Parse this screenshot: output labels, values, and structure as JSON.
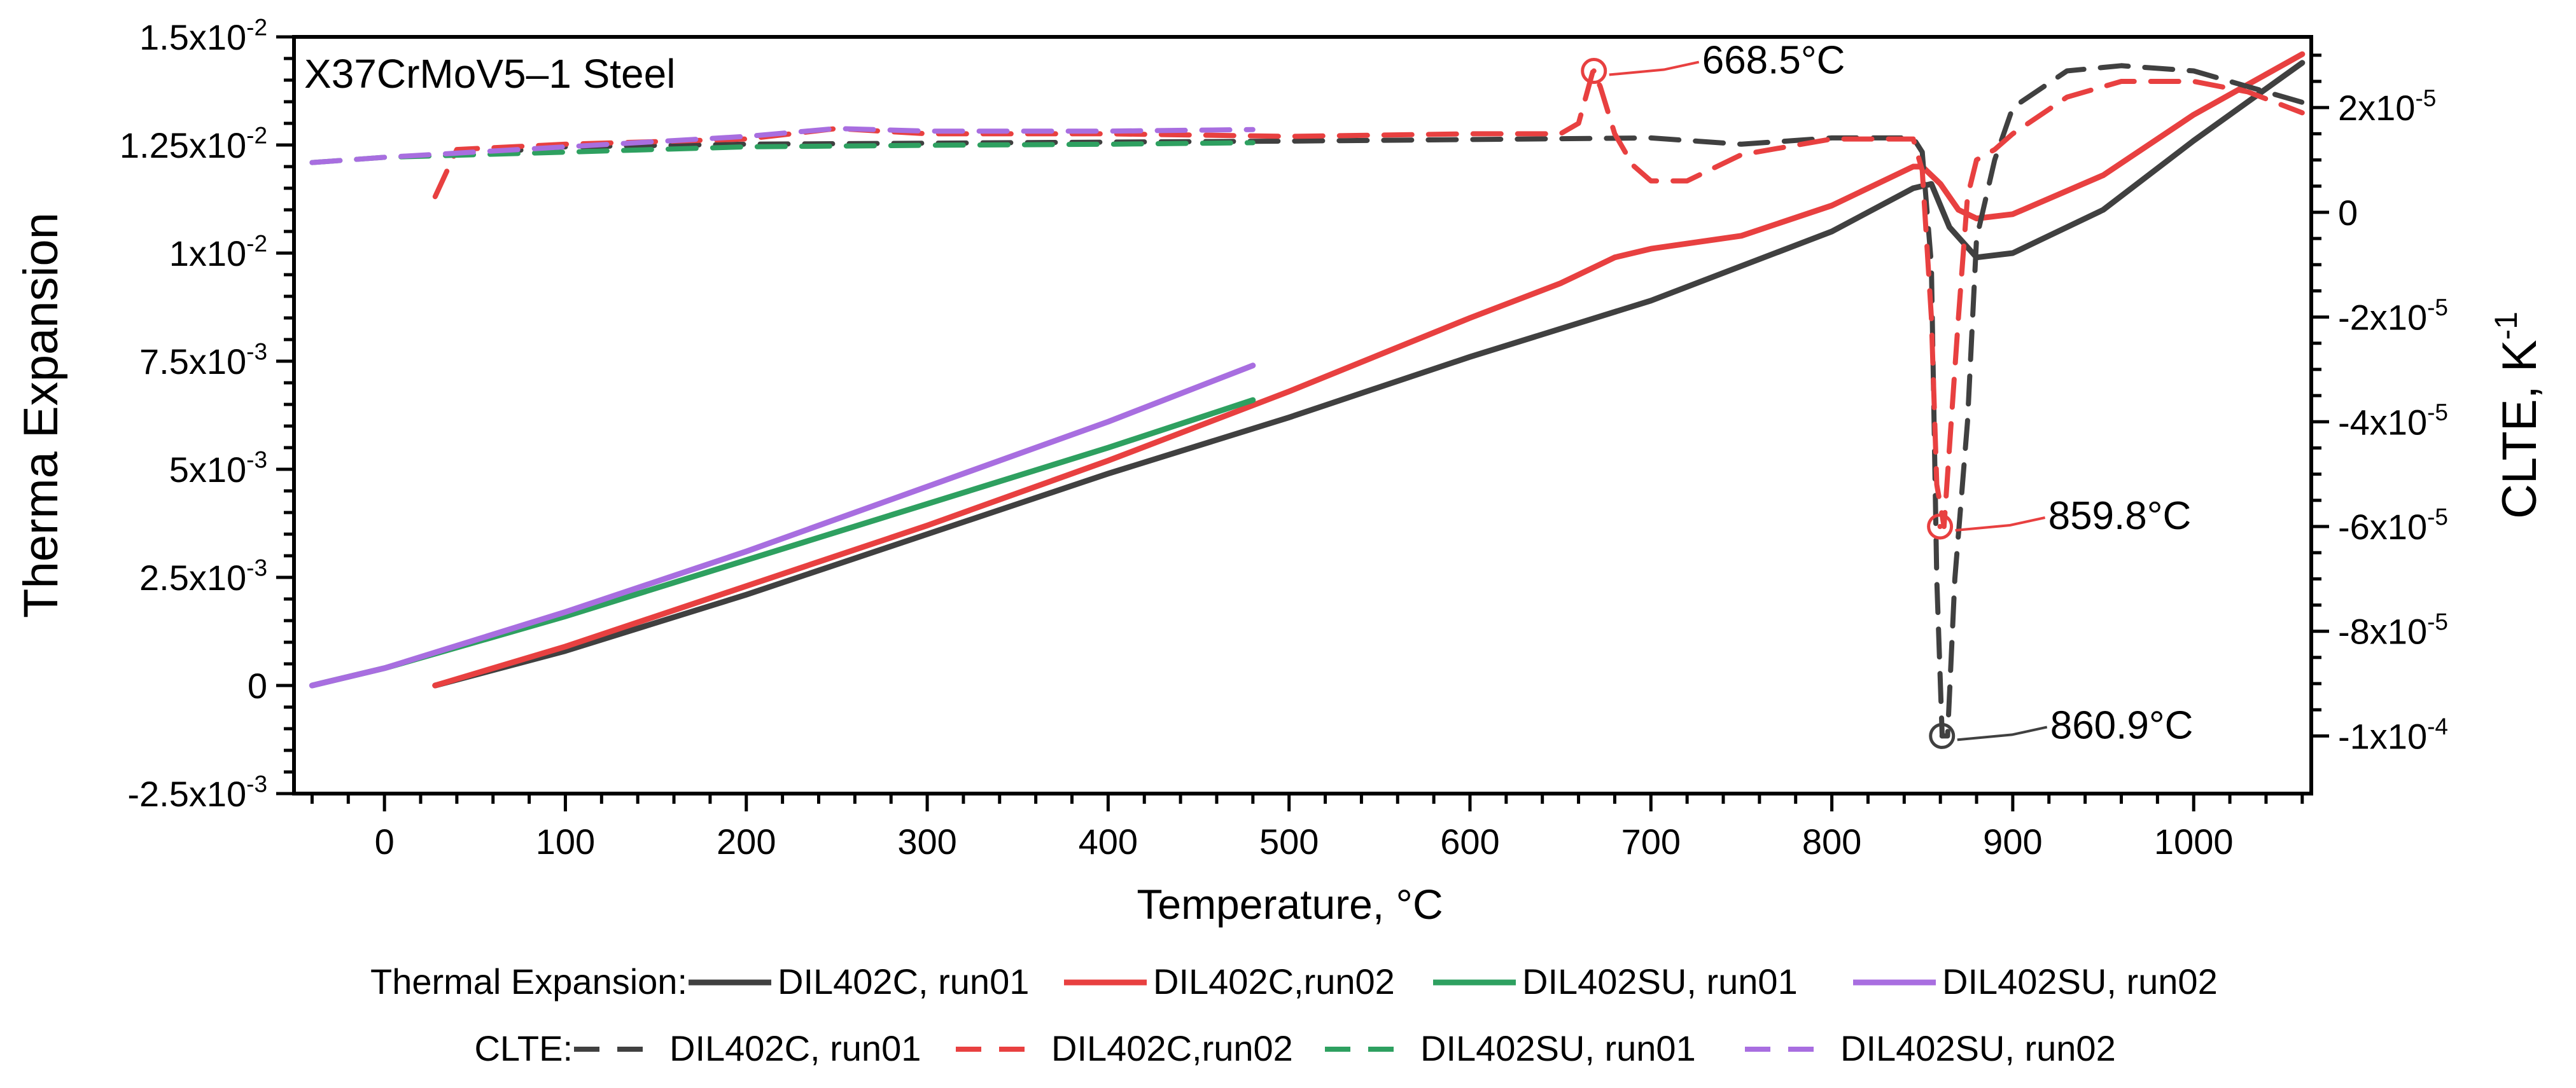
{
  "chart_data": {
    "type": "line",
    "title": "X37CrMoV5–1 Steel",
    "xlabel": "Temperature, °C",
    "ylabel_left": "Therma Expansion",
    "ylabel_right_base": "CLTE, K",
    "ylabel_right_exp": "-1",
    "xlim": [
      -50,
      1065
    ],
    "ylim_left": [
      -0.0025,
      0.015
    ],
    "ylim_right": [
      -0.000111,
      3.35e-05
    ],
    "x_ticks": [
      0,
      100,
      200,
      300,
      400,
      500,
      600,
      700,
      800,
      900,
      1000
    ],
    "left_ticks": [
      {
        "value": -0.0025,
        "base": "-2.5x10",
        "exp": "-3"
      },
      {
        "value": 0,
        "base": "0",
        "exp": ""
      },
      {
        "value": 0.0025,
        "base": "2.5x10",
        "exp": "-3"
      },
      {
        "value": 0.005,
        "base": "5x10",
        "exp": "-3"
      },
      {
        "value": 0.0075,
        "base": "7.5x10",
        "exp": "-3"
      },
      {
        "value": 0.01,
        "base": "1x10",
        "exp": "-2"
      },
      {
        "value": 0.0125,
        "base": "1.25x10",
        "exp": "-2"
      },
      {
        "value": 0.015,
        "base": "1.5x10",
        "exp": "-2"
      }
    ],
    "right_ticks": [
      {
        "value": 2e-05,
        "base": "2x10",
        "exp": "-5"
      },
      {
        "value": 0,
        "base": "0",
        "exp": ""
      },
      {
        "value": -2e-05,
        "base": "-2x10",
        "exp": "-5"
      },
      {
        "value": -4e-05,
        "base": "-4x10",
        "exp": "-5"
      },
      {
        "value": -6e-05,
        "base": "-6x10",
        "exp": "-5"
      },
      {
        "value": -8e-05,
        "base": "-8x10",
        "exp": "-5"
      },
      {
        "value": -0.0001,
        "base": "-1x10",
        "exp": "-4"
      }
    ],
    "series": [
      {
        "name": "DIL402C, run01",
        "group": "Thermal Expansion",
        "axis": "left",
        "color": "#404040",
        "dash": false,
        "x": [
          28,
          100,
          200,
          300,
          400,
          500,
          600,
          700,
          800,
          845,
          855,
          865,
          880,
          900,
          950,
          1000,
          1060
        ],
        "y": [
          0.0,
          0.0008,
          0.0021,
          0.0035,
          0.0049,
          0.0062,
          0.0076,
          0.0089,
          0.0105,
          0.0115,
          0.0116,
          0.0106,
          0.0099,
          0.01,
          0.011,
          0.0126,
          0.0144
        ]
      },
      {
        "name": "DIL402C,run02",
        "group": "Thermal Expansion",
        "axis": "left",
        "color": "#e84040",
        "dash": false,
        "x": [
          28,
          100,
          200,
          300,
          400,
          500,
          600,
          650,
          670,
          680,
          700,
          750,
          800,
          845,
          850,
          860,
          870,
          880,
          900,
          950,
          1000,
          1060
        ],
        "y": [
          0.0,
          0.0009,
          0.0023,
          0.0037,
          0.0052,
          0.0068,
          0.0085,
          0.0093,
          0.0097,
          0.0099,
          0.0101,
          0.0104,
          0.0111,
          0.012,
          0.012,
          0.0116,
          0.011,
          0.0108,
          0.0109,
          0.0118,
          0.0132,
          0.0146
        ]
      },
      {
        "name": "DIL402SU, run01",
        "group": "Thermal Expansion",
        "axis": "left",
        "color": "#2ea060",
        "dash": false,
        "x": [
          -40,
          0,
          100,
          200,
          300,
          400,
          480
        ],
        "y": [
          0.0,
          0.0004,
          0.0016,
          0.0029,
          0.0042,
          0.0055,
          0.0066
        ]
      },
      {
        "name": "DIL402SU, run02",
        "group": "Thermal Expansion",
        "axis": "left",
        "color": "#a86ee0",
        "dash": false,
        "x": [
          -40,
          0,
          100,
          200,
          300,
          400,
          480
        ],
        "y": [
          0.0,
          0.0004,
          0.0017,
          0.0031,
          0.0046,
          0.0061,
          0.0074
        ]
      },
      {
        "name": "DIL402C, run01",
        "group": "CLTE",
        "axis": "right",
        "color": "#404040",
        "dash": true,
        "x": [
          60,
          100,
          200,
          300,
          400,
          500,
          600,
          700,
          750,
          800,
          845,
          850,
          855,
          858,
          861,
          864,
          868,
          875,
          880,
          890,
          900,
          930,
          960,
          1000,
          1030,
          1060
        ],
        "y": [
          1.15e-05,
          1.25e-05,
          1.3e-05,
          1.32e-05,
          1.34e-05,
          1.36e-05,
          1.39e-05,
          1.42e-05,
          1.3e-05,
          1.42e-05,
          1.42e-05,
          1.15e-05,
          -1e-05,
          -7e-05,
          -0.0001,
          -0.0001,
          -7e-05,
          -4e-05,
          -5e-06,
          1e-05,
          2e-05,
          2.7e-05,
          2.8e-05,
          2.7e-05,
          2.4e-05,
          2.1e-05
        ]
      },
      {
        "name": "DIL402C,run02",
        "group": "CLTE",
        "axis": "right",
        "color": "#e84040",
        "dash": true,
        "x": [
          28,
          40,
          100,
          200,
          250,
          300,
          400,
          500,
          600,
          650,
          660,
          668,
          672,
          680,
          690,
          700,
          720,
          750,
          800,
          845,
          850,
          855,
          858,
          862,
          866,
          870,
          875,
          880,
          890,
          900,
          930,
          960,
          1000,
          1030,
          1060
        ],
        "y": [
          3e-06,
          1.2e-05,
          1.3e-05,
          1.4e-05,
          1.6e-05,
          1.5e-05,
          1.5e-05,
          1.45e-05,
          1.5e-05,
          1.5e-05,
          1.7e-05,
          2.7e-05,
          2.4e-05,
          1.5e-05,
          9e-06,
          6e-06,
          6e-06,
          1.1e-05,
          1.4e-05,
          1.4e-05,
          8e-06,
          -2e-05,
          -5.2e-05,
          -6e-05,
          -4e-05,
          -2e-05,
          3e-06,
          1e-05,
          1.2e-05,
          1.5e-05,
          2.2e-05,
          2.5e-05,
          2.5e-05,
          2.3e-05,
          1.9e-05
        ]
      },
      {
        "name": "DIL402SU, run01",
        "group": "CLTE",
        "axis": "right",
        "color": "#2ea060",
        "dash": true,
        "x": [
          -40,
          0,
          100,
          200,
          300,
          400,
          480
        ],
        "y": [
          9.5e-06,
          1.05e-05,
          1.15e-05,
          1.25e-05,
          1.28e-05,
          1.3e-05,
          1.33e-05
        ]
      },
      {
        "name": "DIL402SU, run02",
        "group": "CLTE",
        "axis": "right",
        "color": "#a86ee0",
        "dash": true,
        "x": [
          -40,
          0,
          100,
          200,
          250,
          300,
          400,
          480
        ],
        "y": [
          9.5e-06,
          1.05e-05,
          1.25e-05,
          1.45e-05,
          1.6e-05,
          1.55e-05,
          1.55e-05,
          1.58e-05
        ]
      }
    ],
    "markers": [
      {
        "x": 668.5,
        "y": 2.7e-05,
        "axis": "right",
        "color": "#e84040",
        "label": "668.5°C"
      },
      {
        "x": 859.8,
        "y": -6e-05,
        "axis": "right",
        "color": "#e84040",
        "label": "859.8°C"
      },
      {
        "x": 860.9,
        "y": -0.0001,
        "axis": "right",
        "color": "#404040",
        "label": "860.9°C"
      }
    ],
    "legend": {
      "placement": "bottom",
      "row1_title": "Thermal Expansion:",
      "row2_title": "CLTE:"
    }
  }
}
